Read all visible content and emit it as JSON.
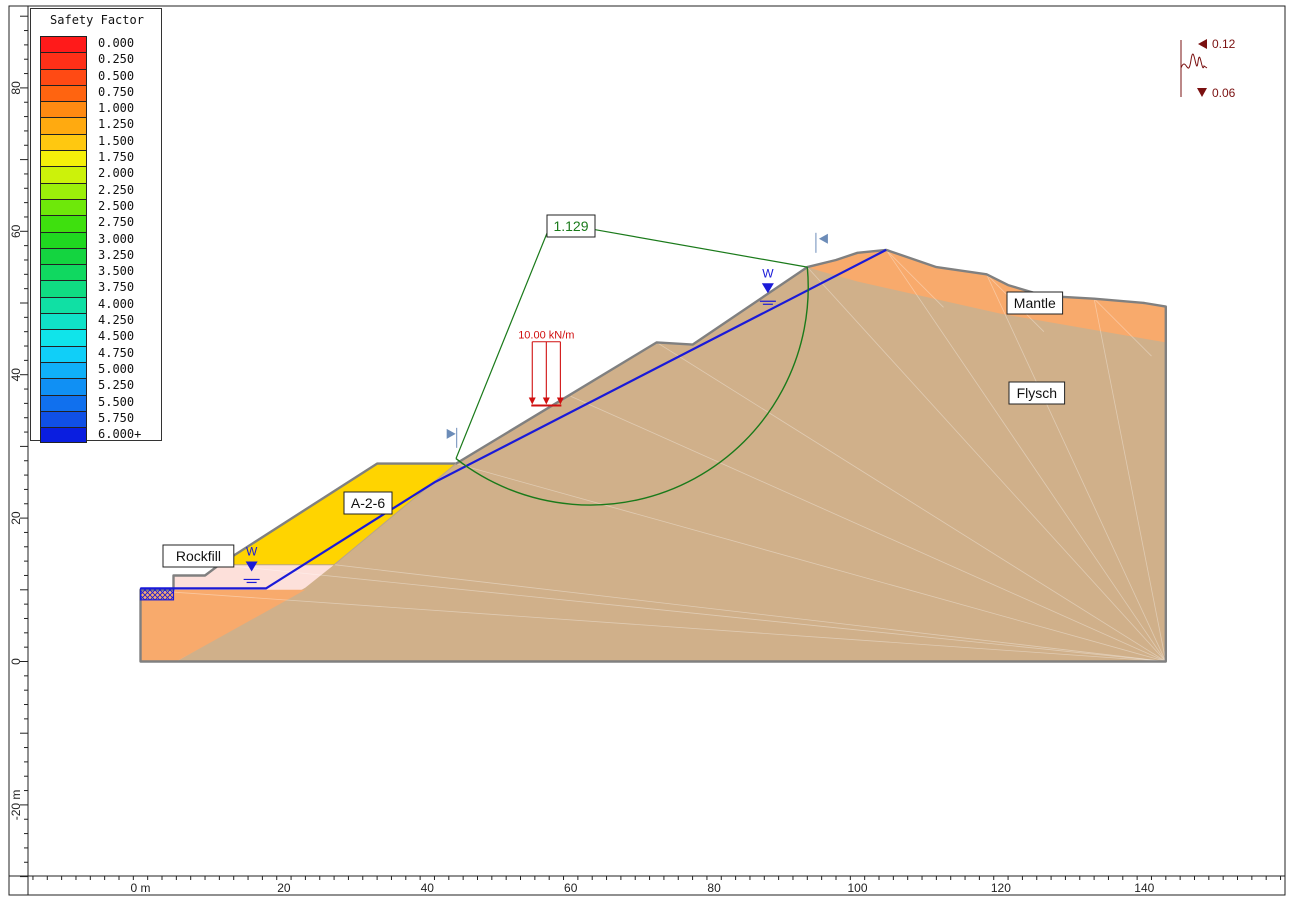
{
  "legend": {
    "title": "Safety Factor",
    "entries": [
      {
        "label": "0.000",
        "color": "#ff1a1a"
      },
      {
        "label": "0.250",
        "color": "#ff3018"
      },
      {
        "label": "0.500",
        "color": "#ff4a14"
      },
      {
        "label": "0.750",
        "color": "#ff6410"
      },
      {
        "label": "1.000",
        "color": "#ff8a12"
      },
      {
        "label": "1.250",
        "color": "#ffaa10"
      },
      {
        "label": "1.500",
        "color": "#ffc810"
      },
      {
        "label": "1.750",
        "color": "#f5f00a"
      },
      {
        "label": "2.000",
        "color": "#ccf20a"
      },
      {
        "label": "2.250",
        "color": "#9cf00a"
      },
      {
        "label": "2.500",
        "color": "#6ee80a"
      },
      {
        "label": "2.750",
        "color": "#3ee00e"
      },
      {
        "label": "3.000",
        "color": "#20d820"
      },
      {
        "label": "3.250",
        "color": "#14d440"
      },
      {
        "label": "3.500",
        "color": "#10d860"
      },
      {
        "label": "3.750",
        "color": "#10dc82"
      },
      {
        "label": "4.000",
        "color": "#10e0a4"
      },
      {
        "label": "4.250",
        "color": "#10e2c8"
      },
      {
        "label": "4.500",
        "color": "#10e4ea"
      },
      {
        "label": "4.750",
        "color": "#10cff8"
      },
      {
        "label": "5.000",
        "color": "#10b0f8"
      },
      {
        "label": "5.250",
        "color": "#1090f4"
      },
      {
        "label": "5.500",
        "color": "#1070ee"
      },
      {
        "label": "5.750",
        "color": "#1050e6"
      },
      {
        "label": "6.000+",
        "color": "#0a1ee0"
      }
    ]
  },
  "axes": {
    "x_tick_labels": [
      {
        "v": 0,
        "label": "0 m"
      },
      {
        "v": 20,
        "label": "20"
      },
      {
        "v": 40,
        "label": "40"
      },
      {
        "v": 60,
        "label": "60"
      },
      {
        "v": 80,
        "label": "80"
      },
      {
        "v": 100,
        "label": "100"
      },
      {
        "v": 120,
        "label": "120"
      },
      {
        "v": 140,
        "label": "140"
      }
    ],
    "y_tick_labels": [
      {
        "v": -20,
        "label": "-20 m"
      },
      {
        "v": 0,
        "label": "0"
      },
      {
        "v": 20,
        "label": "20"
      },
      {
        "v": 40,
        "label": "40"
      },
      {
        "v": 60,
        "label": "60"
      },
      {
        "v": 80,
        "label": "80"
      }
    ],
    "x_range": [
      -15,
      160
    ],
    "y_range": [
      -30,
      90
    ]
  },
  "model": {
    "materials": [
      {
        "name": "Rockfill",
        "color": "#fde0da"
      },
      {
        "name": "A-2-6",
        "color": "#ffd400"
      },
      {
        "name": "Flysch",
        "color": "#d0b08a"
      },
      {
        "name": "Mantle",
        "color": "#f8aa6c"
      }
    ],
    "water_marker": "W",
    "safety_factor": "1.129",
    "distributed_load": "10.00 kN/m",
    "seismic": {
      "horizontal": "0.12",
      "vertical": "0.06"
    },
    "colors": {
      "boundary": "#808080",
      "water": "#1a1ad8",
      "slip_surface": "#1a7a1a",
      "load": "#d01010",
      "seismic": "#7a1010",
      "axis": "#222222"
    }
  }
}
